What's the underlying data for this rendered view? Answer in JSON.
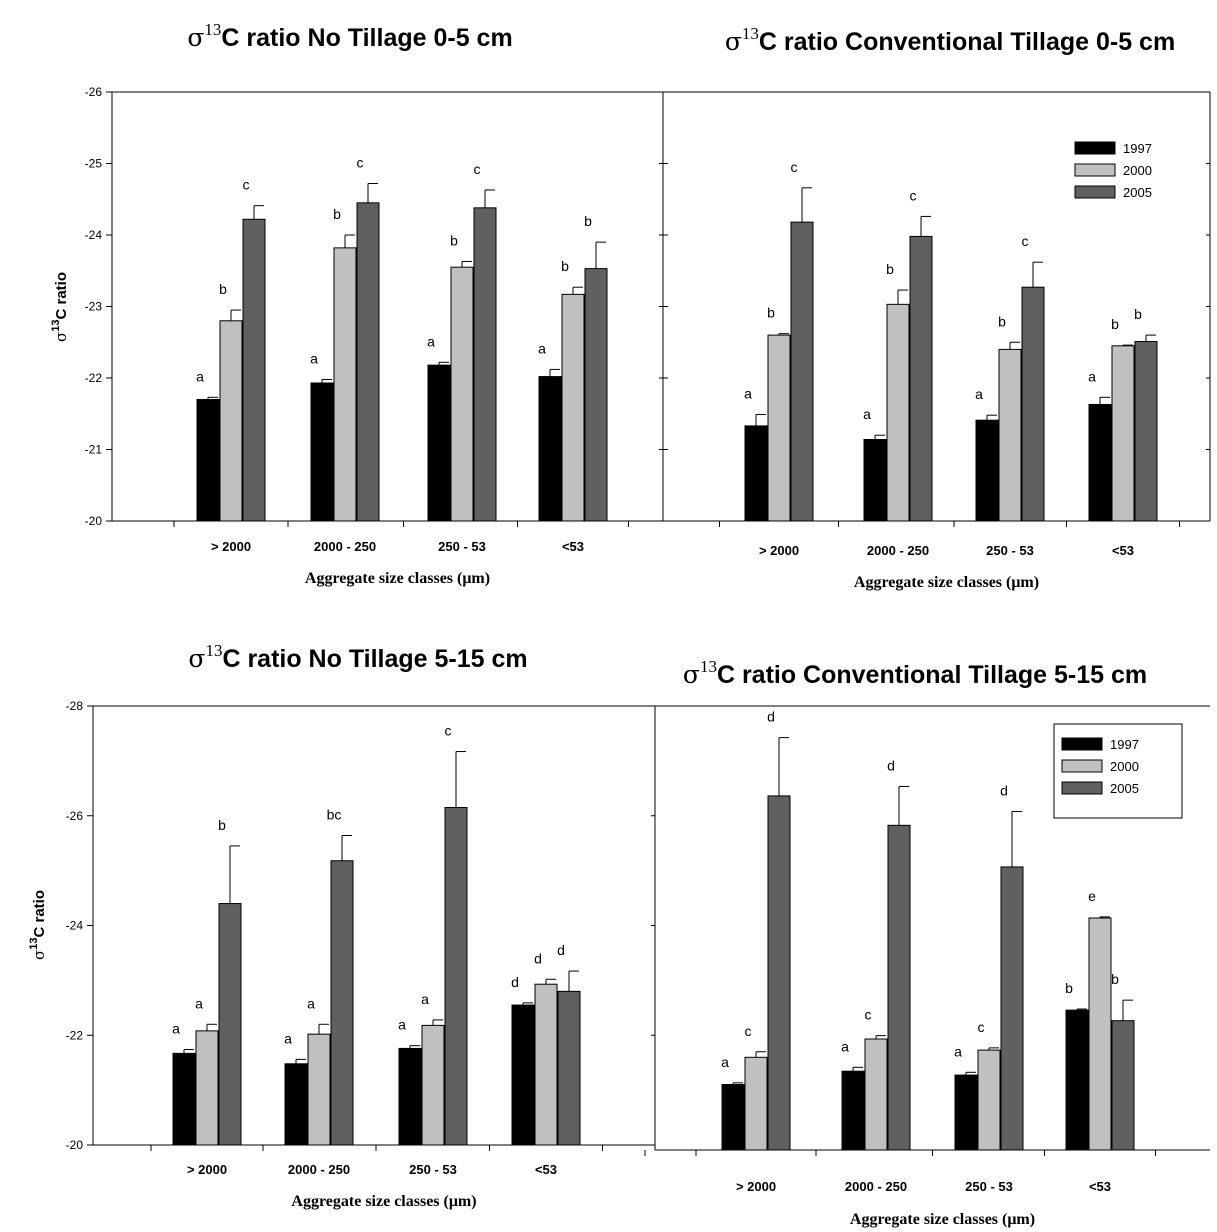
{
  "figure": {
    "legend_title": ""
  },
  "chart_data": [
    {
      "type": "bar",
      "title": {
        "symbol": "σ",
        "superscript": "13",
        "text": "C ratio No Tillage 0-5 cm"
      },
      "ylabel": {
        "symbol": "σ",
        "superscript": "13",
        "text": "C ratio"
      },
      "xlabel": "Aggregate size classes (μm)",
      "categories": [
        "> 2000",
        "2000 - 250",
        "250 - 53",
        "<53"
      ],
      "ylim": [
        -20,
        -26
      ],
      "yticks": [
        -20,
        -21,
        -22,
        -23,
        -24,
        -25,
        -26
      ],
      "legend": false,
      "series": [
        {
          "name": "1997",
          "color": "#000000",
          "values": [
            -21.7,
            -21.93,
            -22.18,
            -22.02
          ],
          "errors": [
            0.03,
            0.05,
            0.04,
            0.1
          ],
          "labels": [
            "a",
            "a",
            "a",
            "a"
          ]
        },
        {
          "name": "2000",
          "color": "#c0c0c0",
          "values": [
            -22.8,
            -23.82,
            -23.55,
            -23.17
          ],
          "errors": [
            0.15,
            0.18,
            0.08,
            0.1
          ],
          "labels": [
            "b",
            "b",
            "b",
            "b"
          ]
        },
        {
          "name": "2005",
          "color": "#606060",
          "values": [
            -24.22,
            -24.45,
            -24.38,
            -23.53
          ],
          "errors": [
            0.19,
            0.27,
            0.25,
            0.37
          ],
          "labels": [
            "c",
            "c",
            "c",
            "b"
          ]
        }
      ]
    },
    {
      "type": "bar",
      "title": {
        "symbol": "σ",
        "superscript": "13",
        "text": "C ratio Conventional Tillage 0-5 cm"
      },
      "ylabel": null,
      "xlabel": "Aggregate size classes (μm)",
      "categories": [
        "> 2000",
        "2000 - 250",
        "250 - 53",
        "<53"
      ],
      "ylim": [
        -20,
        -26
      ],
      "yticks": [
        -20,
        -21,
        -22,
        -23,
        -24,
        -25,
        -26
      ],
      "legend": true,
      "legend_position": "top-right",
      "series": [
        {
          "name": "1997",
          "color": "#000000",
          "values": [
            -21.33,
            -21.14,
            -21.41,
            -21.63
          ],
          "errors": [
            0.16,
            0.06,
            0.07,
            0.1
          ],
          "labels": [
            "a",
            "a",
            "a",
            "a"
          ]
        },
        {
          "name": "2000",
          "color": "#c0c0c0",
          "values": [
            -22.6,
            -23.03,
            -22.4,
            -22.45
          ],
          "errors": [
            0.02,
            0.2,
            0.1,
            0.01
          ],
          "labels": [
            "b",
            "b",
            "b",
            "b"
          ]
        },
        {
          "name": "2005",
          "color": "#606060",
          "values": [
            -24.18,
            -23.98,
            -23.27,
            -22.51
          ],
          "errors": [
            0.48,
            0.28,
            0.35,
            0.09
          ],
          "labels": [
            "c",
            "c",
            "c",
            "b"
          ]
        }
      ]
    },
    {
      "type": "bar",
      "title": {
        "symbol": "σ",
        "superscript": "13",
        "text": "C ratio No Tillage 5-15 cm"
      },
      "ylabel": {
        "symbol": "σ",
        "superscript": "13",
        "text": "C ratio"
      },
      "xlabel": "Aggregate size classes (μm)",
      "categories": [
        "> 2000",
        "2000 - 250",
        "250 - 53",
        "<53"
      ],
      "ylim": [
        -20,
        -28
      ],
      "yticks": [
        -20,
        -22,
        -24,
        -26,
        -28
      ],
      "legend": false,
      "series": [
        {
          "name": "1997",
          "color": "#000000",
          "values": [
            -21.67,
            -21.48,
            -21.76,
            -22.55
          ],
          "errors": [
            0.07,
            0.08,
            0.05,
            0.04
          ],
          "labels": [
            "a",
            "a",
            "a",
            "d"
          ]
        },
        {
          "name": "2000",
          "color": "#c0c0c0",
          "values": [
            -22.08,
            -22.02,
            -22.18,
            -22.93
          ],
          "errors": [
            0.12,
            0.18,
            0.1,
            0.09
          ],
          "labels": [
            "a",
            "a",
            "a",
            "d"
          ]
        },
        {
          "name": "2005",
          "color": "#606060",
          "values": [
            -24.4,
            -25.18,
            -26.15,
            -22.8
          ],
          "errors": [
            1.05,
            0.46,
            1.02,
            0.37
          ],
          "labels": [
            "b",
            "bc",
            "c",
            "d"
          ]
        }
      ]
    },
    {
      "type": "bar",
      "title": {
        "symbol": "σ",
        "superscript": "13",
        "text": "C ratio Conventional Tillage 5-15 cm"
      },
      "ylabel": null,
      "xlabel": "Aggregate size classes (μm)",
      "categories": [
        "> 2000",
        "2000 - 250",
        "250 - 53",
        "<53"
      ],
      "ylim": [
        -20,
        -28
      ],
      "yticks": [],
      "legend": true,
      "legend_position": "top-right",
      "series": [
        {
          "name": "1997",
          "color": "#000000",
          "values": [
            -21.18,
            -21.42,
            -21.35,
            -22.52
          ],
          "errors": [
            0.03,
            0.07,
            0.05,
            0.02
          ],
          "labels": [
            "a",
            "a",
            "a",
            "b"
          ]
        },
        {
          "name": "2000",
          "color": "#c0c0c0",
          "values": [
            -21.67,
            -22.0,
            -21.8,
            -24.18
          ],
          "errors": [
            0.1,
            0.06,
            0.04,
            0.02
          ],
          "labels": [
            "c",
            "c",
            "c",
            "e"
          ]
        },
        {
          "name": "2005",
          "color": "#606060",
          "values": [
            -26.38,
            -25.85,
            -25.1,
            -22.33
          ],
          "errors": [
            1.05,
            0.7,
            1.0,
            0.37
          ],
          "labels": [
            "d",
            "d",
            "d",
            "b"
          ]
        }
      ]
    }
  ]
}
